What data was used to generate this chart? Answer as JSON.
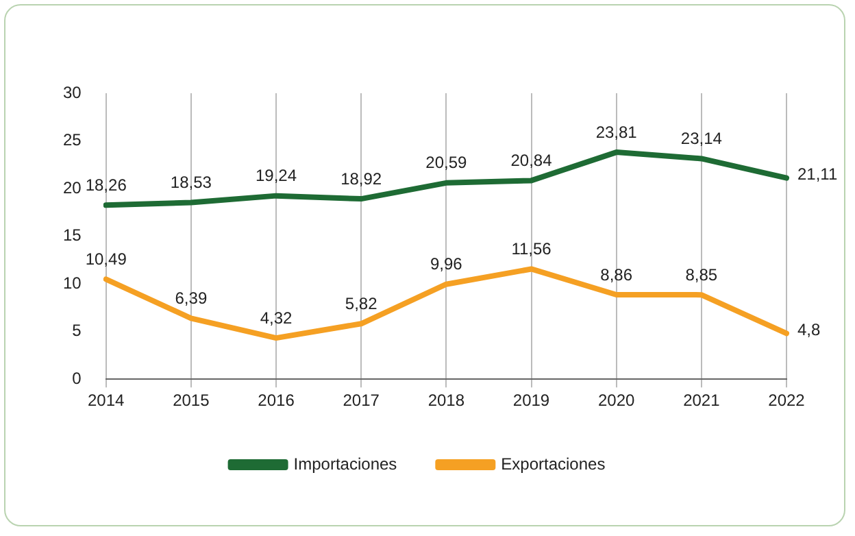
{
  "chart_data": {
    "type": "line",
    "categories": [
      "2014",
      "2015",
      "2016",
      "2017",
      "2018",
      "2019",
      "2020",
      "2021",
      "2022"
    ],
    "series": [
      {
        "name": "Importaciones",
        "color": "#1e6b34",
        "values": [
          18.26,
          18.53,
          19.24,
          18.92,
          20.59,
          20.84,
          23.81,
          23.14,
          21.11
        ],
        "value_labels": [
          "18,26",
          "18,53",
          "19,24",
          "18,92",
          "20,59",
          "20,84",
          "23,81",
          "23,14",
          "21,11"
        ]
      },
      {
        "name": "Exportaciones",
        "color": "#f5a023",
        "values": [
          10.49,
          6.39,
          4.32,
          5.82,
          9.96,
          11.56,
          8.86,
          8.85,
          4.8
        ],
        "value_labels": [
          "10,49",
          "6,39",
          "4,32",
          "5,82",
          "9,96",
          "11,56",
          "8,86",
          "8,85",
          "4,8"
        ]
      }
    ],
    "ylim": [
      0,
      30
    ],
    "yticks": [
      0,
      5,
      10,
      15,
      20,
      25,
      30
    ],
    "grid": "x",
    "legend": "bottom",
    "marker": "none",
    "line_style": "solid"
  }
}
